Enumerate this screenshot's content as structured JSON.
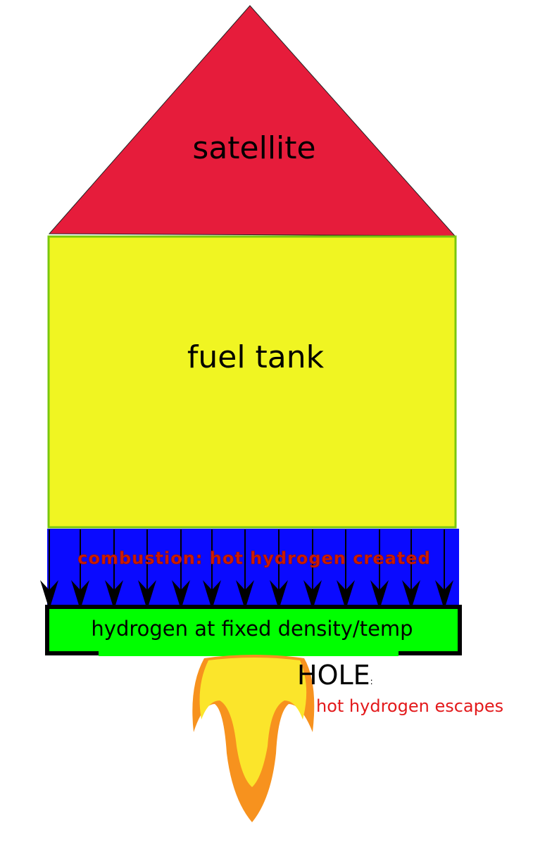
{
  "labels": {
    "satellite": "satellite",
    "fuel_tank": "fuel tank",
    "combustion": "combustion: hot hydrogen created",
    "chamber": "hydrogen at fixed density/temp",
    "hole": "HOLE",
    "hole_colon": ":",
    "escape": "hot hydrogen escapes"
  },
  "colors": {
    "satellite": "#e61c3b",
    "fuel_tank": "#f0f522",
    "fuel_tank_border": "#7ac70c",
    "combustion": "#0a0aff",
    "combustion_text": "#cc1a00",
    "chamber": "#00ff00",
    "flame_outer": "#f7921e",
    "flame_inner": "#fbe52b",
    "escape_text": "#e3191b"
  },
  "icons": {
    "arrows": "arrow-down-icon",
    "flame": "flame-icon"
  }
}
